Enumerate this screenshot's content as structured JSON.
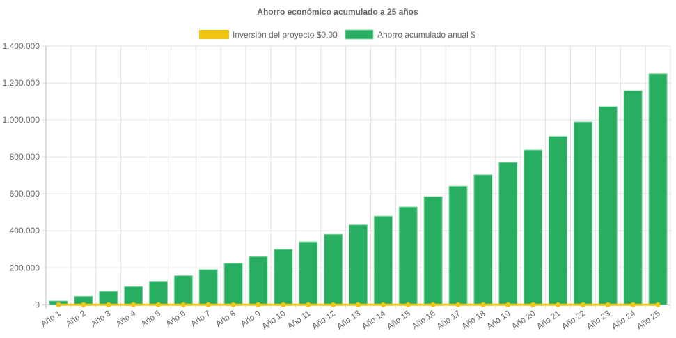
{
  "chart_data": {
    "type": "bar",
    "title": "Ahorro económico acumulado a 25 años",
    "xlabel": "",
    "ylabel": "",
    "ylim": [
      0,
      1400000
    ],
    "y_ticks": [
      "0",
      "200.000",
      "400.000",
      "600.000",
      "800.000",
      "1.000.000",
      "1.200.000",
      "1.400.000"
    ],
    "y_tick_values": [
      0,
      200000,
      400000,
      600000,
      800000,
      1000000,
      1200000,
      1400000
    ],
    "grid": true,
    "legend_position": "top",
    "categories": [
      "Año 1",
      "Año 2",
      "Año 3",
      "Año 4",
      "Año 5",
      "Año 6",
      "Año 7",
      "Año 8",
      "Año 9",
      "Año 10",
      "Año 11",
      "Año 12",
      "Año 13",
      "Año 14",
      "Año 15",
      "Año 16",
      "Año 17",
      "Año 18",
      "Año 19",
      "Año 20",
      "Año 21",
      "Año 22",
      "Año 23",
      "Año 24",
      "Año 25"
    ],
    "series": [
      {
        "name": "Inversión del proyecto $0.00",
        "type": "line",
        "color": "#f1c40f",
        "values": [
          0,
          0,
          0,
          0,
          0,
          0,
          0,
          0,
          0,
          0,
          0,
          0,
          0,
          0,
          0,
          0,
          0,
          0,
          0,
          0,
          0,
          0,
          0,
          0,
          0
        ]
      },
      {
        "name": "Ahorro acumulado anual $",
        "type": "bar",
        "color": "#27ae60",
        "values": [
          20000,
          45000,
          72000,
          98000,
          127000,
          157000,
          190000,
          224000,
          260000,
          299000,
          340000,
          381000,
          432000,
          479000,
          529000,
          585000,
          641000,
          703000,
          770000,
          838000,
          911000,
          989000,
          1072000,
          1158000,
          1250000
        ]
      }
    ]
  }
}
